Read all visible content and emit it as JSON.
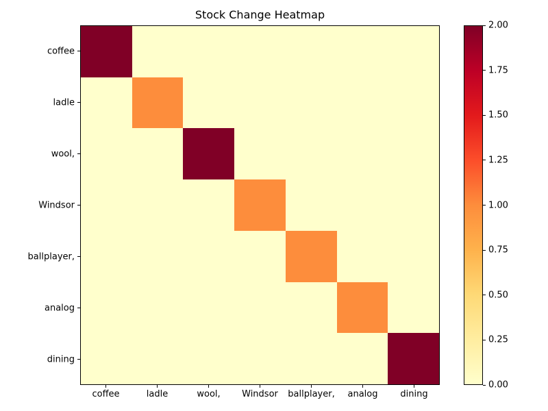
{
  "figure": {
    "background_color": "#ffffff",
    "spine_color": "#000000"
  },
  "chart_data": {
    "type": "heatmap",
    "title": "Stock Change Heatmap",
    "x_labels": [
      "coffee",
      "ladle",
      "wool,",
      "Windsor",
      "ballplayer,",
      "analog",
      "dining"
    ],
    "y_labels": [
      "coffee",
      "ladle",
      "wool,",
      "Windsor",
      "ballplayer,",
      "analog",
      "dining"
    ],
    "values": [
      [
        2,
        0,
        0,
        0,
        0,
        0,
        0
      ],
      [
        0,
        1,
        0,
        0,
        0,
        0,
        0
      ],
      [
        0,
        0,
        2,
        0,
        0,
        0,
        0
      ],
      [
        0,
        0,
        0,
        1,
        0,
        0,
        0
      ],
      [
        0,
        0,
        0,
        0,
        1,
        0,
        0
      ],
      [
        0,
        0,
        0,
        0,
        0,
        1,
        0
      ],
      [
        0,
        0,
        0,
        0,
        0,
        0,
        2
      ]
    ],
    "vmin": 0,
    "vmax": 2,
    "value_colors": {
      "0": "#ffffcc",
      "1": "#fd8d3c",
      "2": "#800026"
    },
    "colormap_stops": [
      "#ffffcc",
      "#ffeda0",
      "#fed976",
      "#feb24c",
      "#fd8d3c",
      "#fc4e2a",
      "#e31a1c",
      "#bd0026",
      "#800026"
    ],
    "colorbar": {
      "tick_labels_top_to_bottom": [
        "2.00",
        "1.75",
        "1.50",
        "1.25",
        "1.00",
        "0.75",
        "0.50",
        "0.25",
        "0.00"
      ]
    },
    "grid": false,
    "legend": "colorbar-right"
  }
}
